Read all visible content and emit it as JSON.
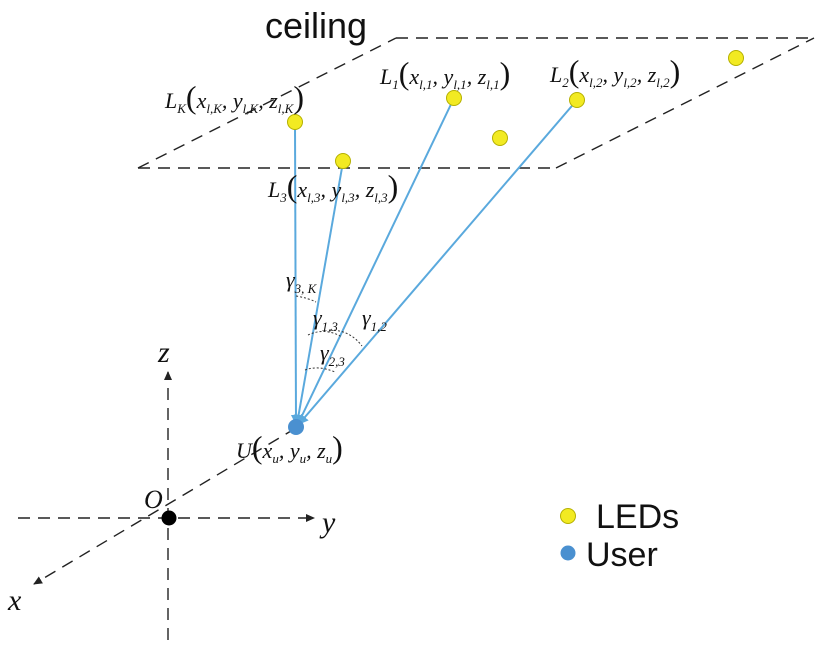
{
  "plane_label": "ceiling",
  "colors": {
    "led": "#f2ea22",
    "led_stroke": "#b5b000",
    "user": "#4a90d0",
    "ray": "#5aa9dd",
    "axis": "#222222",
    "origin": "#000000"
  },
  "axes": {
    "z": "z",
    "y": "y",
    "x": "x",
    "origin": "O"
  },
  "leds": {
    "LK": {
      "name": "L",
      "name_sub": "K",
      "coords": [
        "x",
        "l,K",
        "y",
        "l,K",
        "z",
        "l,K"
      ]
    },
    "L1": {
      "name": "L",
      "name_sub": "1",
      "coords": [
        "x",
        "l,1",
        "y",
        "l,1",
        "z",
        "l,1"
      ]
    },
    "L2": {
      "name": "L",
      "name_sub": "2",
      "coords": [
        "x",
        "l,2",
        "y",
        "l,2",
        "z",
        "l,2"
      ]
    },
    "L3": {
      "name": "L",
      "name_sub": "3",
      "coords": [
        "x",
        "l,3",
        "y",
        "l,3",
        "z",
        "l,3"
      ]
    }
  },
  "user": {
    "name": "U",
    "coords": [
      "x",
      "u",
      "y",
      "u",
      "z",
      "u"
    ]
  },
  "angles": {
    "g3K": {
      "sym": "γ",
      "sub": "3, K"
    },
    "g13": {
      "sym": "γ",
      "sub": "1,3"
    },
    "g12": {
      "sym": "γ",
      "sub": "1,2"
    },
    "g23": {
      "sym": "γ",
      "sub": "2,3"
    }
  },
  "legend": {
    "leds": "LEDs",
    "user": "User"
  }
}
